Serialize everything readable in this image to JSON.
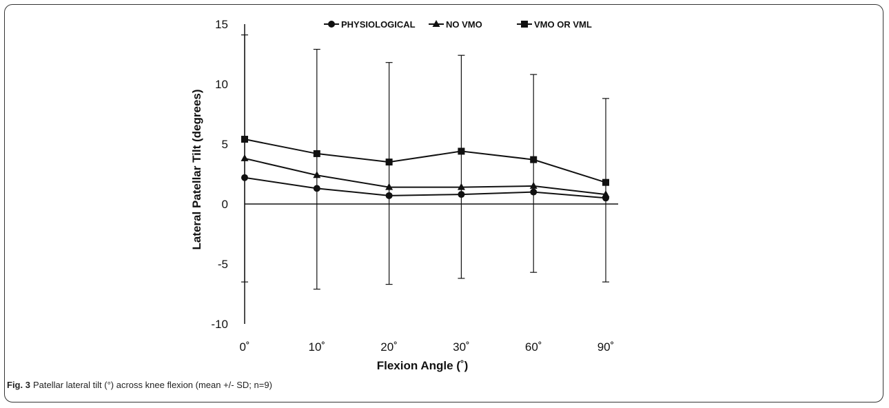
{
  "caption": {
    "label": "Fig. 3",
    "text": "Patellar lateral tilt (°) across knee flexion (mean +/- SD; n=9)"
  },
  "chart_data": {
    "type": "line",
    "xlabel": "Flexion Angle (˚)",
    "ylabel": "Lateral Patellar Tilt (degrees)",
    "categories": [
      "0˚",
      "10˚",
      "20˚",
      "30˚",
      "60˚",
      "90˚"
    ],
    "y_ticks": [
      "-10",
      "-5",
      "0",
      "5",
      "10",
      "15"
    ],
    "ylim": [
      -10,
      15
    ],
    "grid": false,
    "legend_position": "top",
    "series": [
      {
        "name": "PHYSIOLOGICAL",
        "marker": "circle",
        "values": [
          2.2,
          1.3,
          0.7,
          0.8,
          1.0,
          0.5
        ]
      },
      {
        "name": "NO VMO",
        "marker": "triangle",
        "values": [
          3.8,
          2.4,
          1.4,
          1.4,
          1.5,
          0.8
        ]
      },
      {
        "name": "VMO OR VML",
        "marker": "square",
        "values": [
          5.4,
          4.2,
          3.5,
          4.4,
          3.7,
          1.8
        ]
      }
    ],
    "error_bars": [
      {
        "category": "0˚",
        "low": -6.5,
        "high": 14.1
      },
      {
        "category": "10˚",
        "low": -7.1,
        "high": 12.9
      },
      {
        "category": "20˚",
        "low": -6.7,
        "high": 11.8
      },
      {
        "category": "30˚",
        "low": -6.2,
        "high": 12.4
      },
      {
        "category": "60˚",
        "low": -5.7,
        "high": 10.8
      },
      {
        "category": "90˚",
        "low": -6.5,
        "high": 8.8
      }
    ],
    "colors": {
      "line": "#111111",
      "zero_line": "#111111"
    }
  }
}
